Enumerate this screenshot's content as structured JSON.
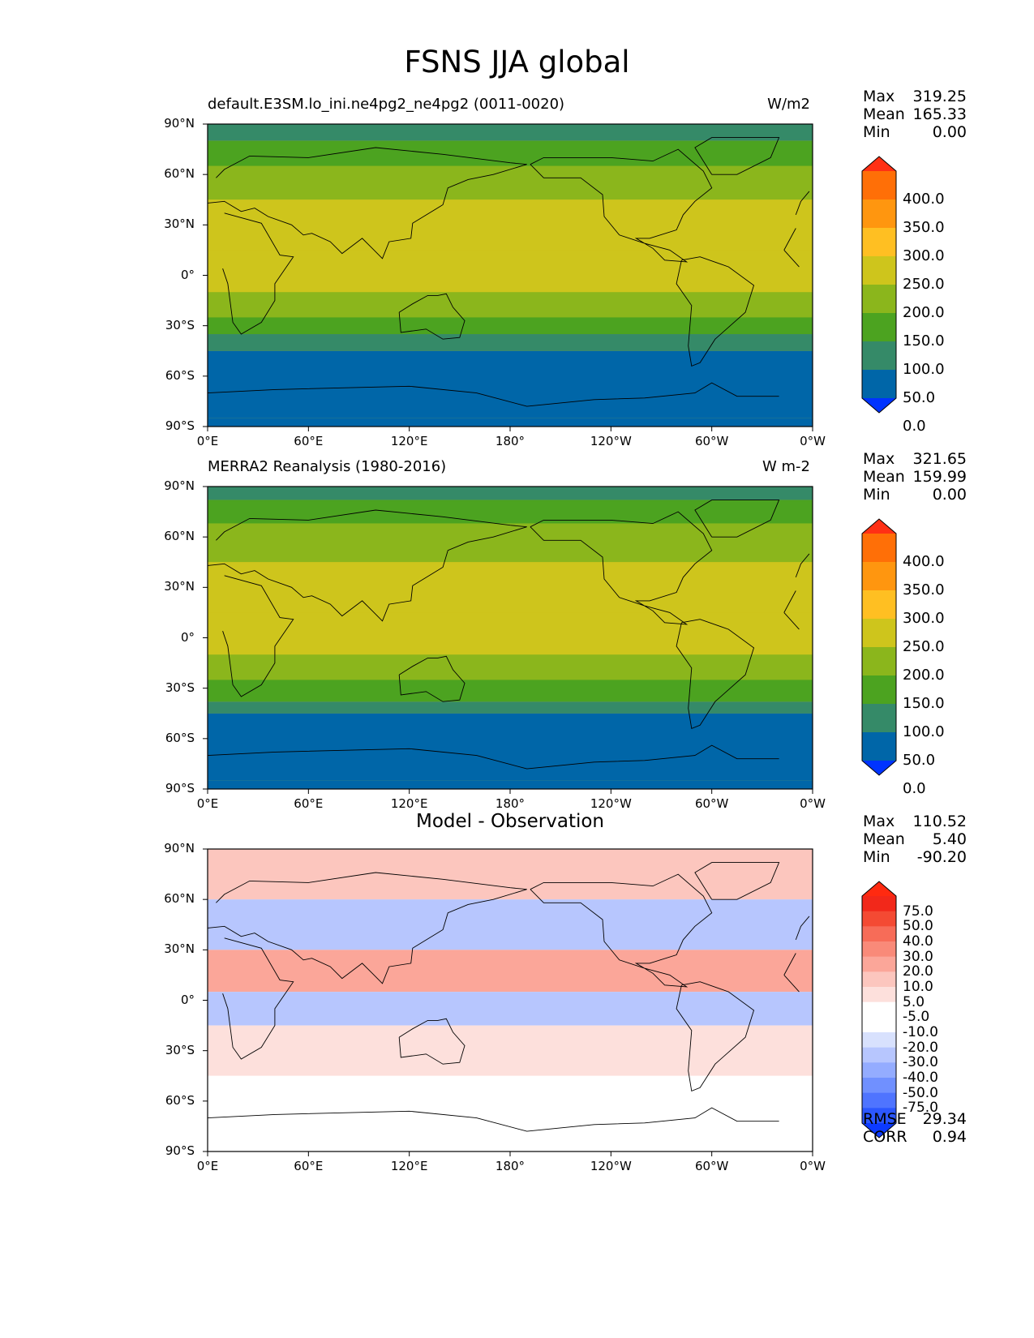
{
  "figure_title": "FSNS JJA global",
  "x_ticks": [
    "0°E",
    "60°E",
    "120°E",
    "180°",
    "120°W",
    "60°W",
    "0°W"
  ],
  "y_ticks": [
    "90°N",
    "60°N",
    "30°N",
    "0°",
    "30°S",
    "60°S",
    "90°S"
  ],
  "colors": {
    "abs_levels": [
      "#0033ff",
      "#0066a8",
      "#358a68",
      "#4ca320",
      "#8bb61c",
      "#cec51c",
      "#ffbf22",
      "#ff960f",
      "#ff6f07",
      "#ff3015"
    ],
    "diff_levels": [
      "#0c3aff",
      "#2c57ff",
      "#4f74ff",
      "#7090ff",
      "#94acff",
      "#b7c6fe",
      "#d8e1fd",
      "#ffffff",
      "#ffffff",
      "#fde0dc",
      "#fcc6be",
      "#fba699",
      "#f98a79",
      "#f76c58",
      "#f44a33",
      "#f2281a",
      "#ff2a10"
    ]
  },
  "panels": [
    {
      "title": "default.E3SM.lo_ini.ne4pg2_ne4pg2 (0011-0020)",
      "units": "W/m2",
      "stats": [
        {
          "label": "Max",
          "value": "319.25"
        },
        {
          "label": "Mean",
          "value": "165.33"
        },
        {
          "label": "Min",
          "value": "0.00"
        }
      ],
      "colorbar_labels": [
        "400.0",
        "350.0",
        "300.0",
        "250.0",
        "200.0",
        "150.0",
        "100.0",
        "50.0",
        "0.0"
      ]
    },
    {
      "title": "MERRA2 Reanalysis (1980-2016)",
      "units": "W m-2",
      "stats": [
        {
          "label": "Max",
          "value": "321.65"
        },
        {
          "label": "Mean",
          "value": "159.99"
        },
        {
          "label": "Min",
          "value": "0.00"
        }
      ],
      "colorbar_labels": [
        "400.0",
        "350.0",
        "300.0",
        "250.0",
        "200.0",
        "150.0",
        "100.0",
        "50.0",
        "0.0"
      ]
    },
    {
      "title": "Model - Observation",
      "units": "",
      "stats": [
        {
          "label": "Max",
          "value": "110.52"
        },
        {
          "label": "Mean",
          "value": "5.40"
        },
        {
          "label": "Min",
          "value": "-90.20"
        }
      ],
      "colorbar_labels": [
        "75.0",
        "50.0",
        "40.0",
        "30.0",
        "20.0",
        "10.0",
        "5.0",
        "-5.0",
        "-10.0",
        "-20.0",
        "-30.0",
        "-40.0",
        "-50.0",
        "-75.0"
      ],
      "metrics": [
        {
          "label": "RMSE",
          "value": "29.34"
        },
        {
          "label": "CORR",
          "value": "0.94"
        }
      ]
    }
  ],
  "chart_data": [
    {
      "type": "heatmap",
      "title": "default.E3SM.lo_ini.ne4pg2_ne4pg2 (0011-0020)",
      "variable": "FSNS",
      "season": "JJA",
      "units": "W/m2",
      "xlim": [
        0,
        360
      ],
      "ylim": [
        -90,
        90
      ],
      "levels": [
        0,
        50,
        100,
        150,
        200,
        250,
        300,
        350,
        400
      ],
      "zonal_bands": [
        {
          "lat": [
            80,
            90
          ],
          "value": 90
        },
        {
          "lat": [
            65,
            80
          ],
          "value": 130
        },
        {
          "lat": [
            45,
            65
          ],
          "value": 180
        },
        {
          "lat": [
            15,
            45
          ],
          "value": 230
        },
        {
          "lat": [
            -10,
            15
          ],
          "value": 205
        },
        {
          "lat": [
            -25,
            -10
          ],
          "value": 185
        },
        {
          "lat": [
            -35,
            -25
          ],
          "value": 140
        },
        {
          "lat": [
            -45,
            -35
          ],
          "value": 85
        },
        {
          "lat": [
            -85,
            -45
          ],
          "value": 30
        },
        {
          "lat": [
            -90,
            -85
          ],
          "value": 0
        }
      ],
      "max": 319.25,
      "mean": 165.33,
      "min": 0.0
    },
    {
      "type": "heatmap",
      "title": "MERRA2 Reanalysis (1980-2016)",
      "variable": "FSNS",
      "season": "JJA",
      "units": "W m-2",
      "xlim": [
        0,
        360
      ],
      "ylim": [
        -90,
        90
      ],
      "levels": [
        0,
        50,
        100,
        150,
        200,
        250,
        300,
        350,
        400
      ],
      "zonal_bands": [
        {
          "lat": [
            82,
            90
          ],
          "value": 90
        },
        {
          "lat": [
            68,
            82
          ],
          "value": 140
        },
        {
          "lat": [
            45,
            68
          ],
          "value": 185
        },
        {
          "lat": [
            15,
            45
          ],
          "value": 230
        },
        {
          "lat": [
            -10,
            15
          ],
          "value": 210
        },
        {
          "lat": [
            -25,
            -10
          ],
          "value": 180
        },
        {
          "lat": [
            -38,
            -25
          ],
          "value": 130
        },
        {
          "lat": [
            -45,
            -38
          ],
          "value": 80
        },
        {
          "lat": [
            -85,
            -45
          ],
          "value": 30
        },
        {
          "lat": [
            -90,
            -85
          ],
          "value": 0
        }
      ],
      "max": 321.65,
      "mean": 159.99,
      "min": 0.0
    },
    {
      "type": "heatmap",
      "title": "Model - Observation",
      "xlim": [
        0,
        360
      ],
      "ylim": [
        -90,
        90
      ],
      "levels": [
        -75,
        -50,
        -40,
        -30,
        -20,
        -10,
        -5,
        5,
        10,
        20,
        30,
        40,
        50,
        75
      ],
      "zonal_bands": [
        {
          "lat": [
            60,
            90
          ],
          "value": 25
        },
        {
          "lat": [
            30,
            60
          ],
          "value": -20
        },
        {
          "lat": [
            5,
            30
          ],
          "value": 30
        },
        {
          "lat": [
            -15,
            5
          ],
          "value": -15
        },
        {
          "lat": [
            -45,
            -15
          ],
          "value": 15
        },
        {
          "lat": [
            -60,
            -45
          ],
          "value": 5
        },
        {
          "lat": [
            -90,
            -60
          ],
          "value": 0
        }
      ],
      "max": 110.52,
      "mean": 5.4,
      "min": -90.2,
      "rmse": 29.34,
      "corr": 0.94
    }
  ]
}
